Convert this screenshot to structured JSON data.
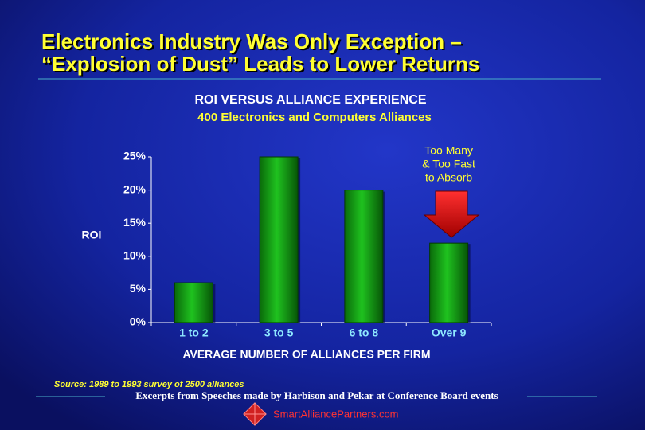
{
  "header": {
    "title_lines": [
      "Electronics Industry Was Only Exception –",
      "“Explosion of Dust” Leads to Lower Returns"
    ]
  },
  "chart_data": {
    "type": "bar",
    "title": "ROI VERSUS ALLIANCE EXPERIENCE",
    "subtitle": "400 Electronics and Computers Alliances",
    "y_label": "ROI",
    "x_label": "AVERAGE NUMBER OF ALLIANCES PER FIRM",
    "categories": [
      "1 to 2",
      "3 to 5",
      "6 to 8",
      "Over 9"
    ],
    "values": [
      6,
      25,
      20,
      12
    ],
    "color": "#0f9a12",
    "ylim": [
      0,
      25
    ],
    "yticks": [
      {
        "value": 0,
        "label": "0%"
      },
      {
        "value": 5,
        "label": "5%"
      },
      {
        "value": 10,
        "label": "10%"
      },
      {
        "value": 15,
        "label": "15%"
      },
      {
        "value": 20,
        "label": "20%"
      },
      {
        "value": 25,
        "label": "25%"
      }
    ],
    "grid": false,
    "annotation": {
      "lines": [
        "Too Many",
        "& Too Fast",
        "to Absorb"
      ]
    }
  },
  "footer": {
    "source": "Source:  1989 to 1993 survey of 2500 alliances",
    "excerpt": "Excerpts from Speeches made by Harbison and Pekar at Conference Board events",
    "website": "SmartAlliancePartners.com"
  }
}
